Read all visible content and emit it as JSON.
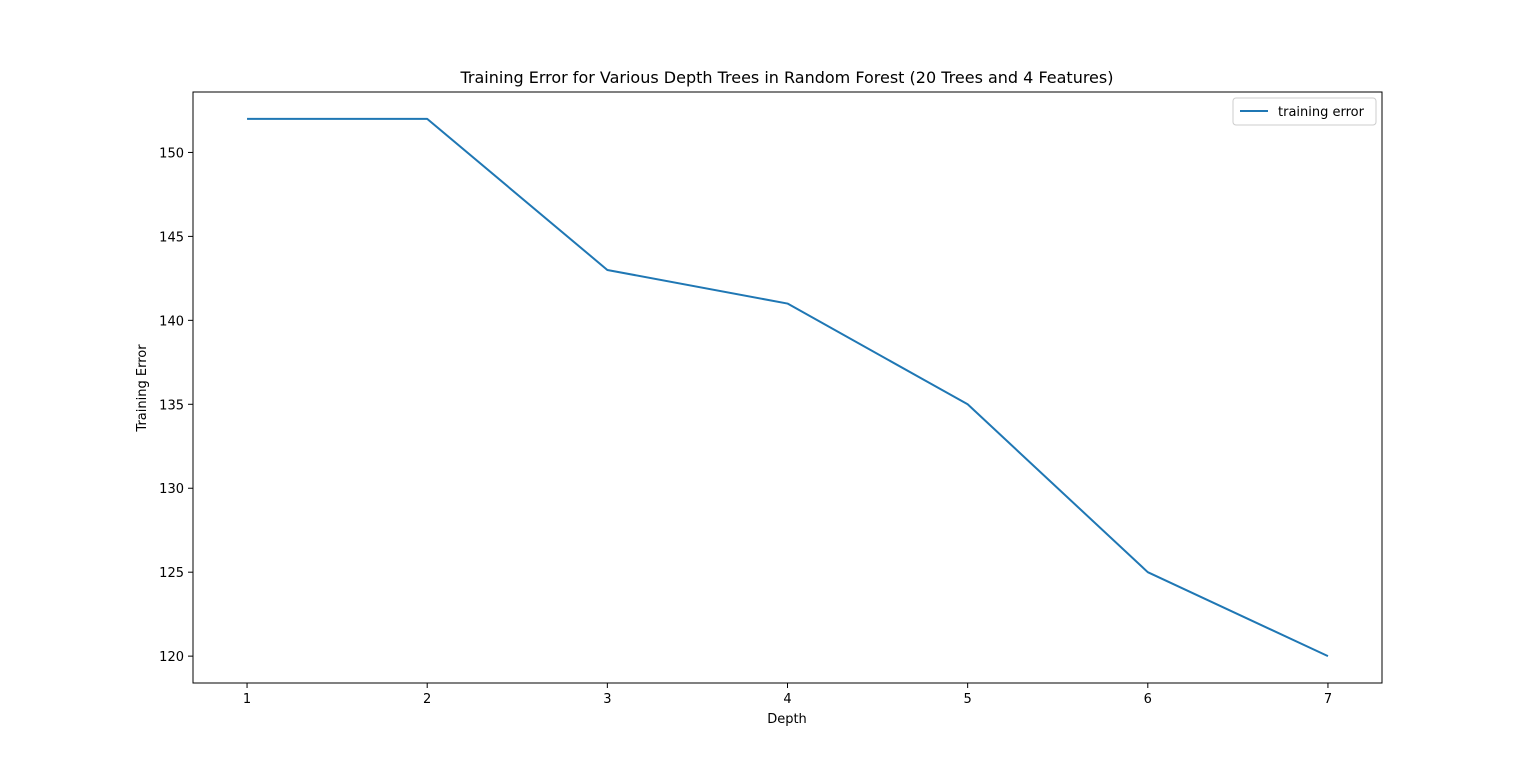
{
  "chart_data": {
    "type": "line",
    "title": "Training Error for Various Depth Trees in Random Forest (20 Trees and 4 Features)",
    "xlabel": "Depth",
    "ylabel": "Training Error",
    "x": [
      1,
      2,
      3,
      4,
      5,
      6,
      7
    ],
    "series": [
      {
        "name": "training error",
        "values": [
          152,
          152,
          143,
          141,
          135,
          125,
          120
        ],
        "color": "#1f77b4"
      }
    ],
    "xlim": [
      0.7,
      7.3
    ],
    "ylim": [
      118.4,
      153.6
    ],
    "xticks": [
      "1",
      "2",
      "3",
      "4",
      "5",
      "6",
      "7"
    ],
    "yticks": [
      "120",
      "125",
      "130",
      "135",
      "140",
      "145",
      "150"
    ],
    "grid": false,
    "legend": "top-right"
  }
}
